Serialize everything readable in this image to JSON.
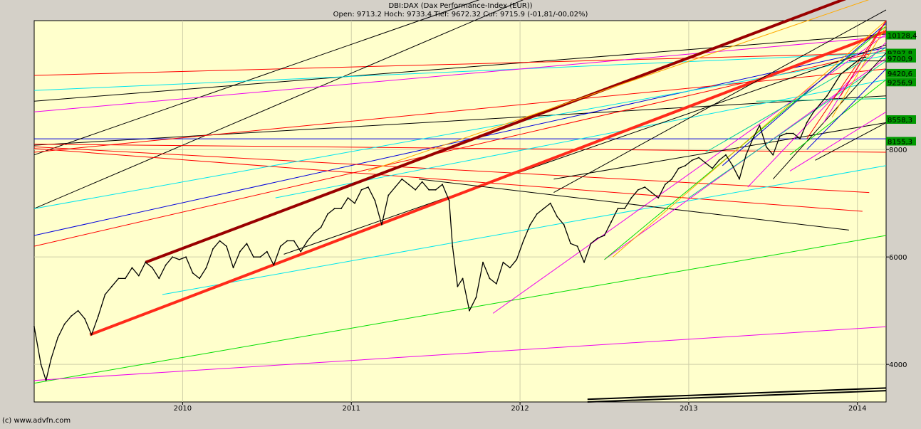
{
  "header": {
    "title": "DBI:DAX (Dax Performance-Index (EUR))",
    "quote": "Open: 9713.2 Hoch: 9733.4 Tief: 9672.32 Cur: 9715.9 (-01,81/-00,02%)"
  },
  "footer": {
    "copyright": "(c) www.advfn.com"
  },
  "colors": {
    "plot_bg": "#ffffcc",
    "frame_bg": "#d4d0c8",
    "price": "#000000",
    "label_box": "#009900",
    "red": "#ff0000",
    "thick_red": "#ff2a1a",
    "dark_red": "#990000",
    "black": "#000000",
    "blue": "#0000dd",
    "cyan": "#00e5ee",
    "magenta": "#ee00ee",
    "green": "#00dd00",
    "orange": "#ffaa00",
    "teal": "#00cc99"
  },
  "chart_data": {
    "type": "line",
    "title": "DBI:DAX (Dax Performance-Index (EUR))",
    "xlabel": "",
    "ylabel": "",
    "x_ticks": [
      "2010",
      "2011",
      "2012",
      "2013",
      "2014"
    ],
    "y_ticks": [
      4000,
      6000,
      8000
    ],
    "xlim": [
      2009.12,
      2014.17
    ],
    "ylim": [
      3300,
      10400
    ],
    "grid": true,
    "price_series": {
      "name": "",
      "x": [
        2009.12,
        2009.16,
        2009.19,
        2009.22,
        2009.26,
        2009.3,
        2009.34,
        2009.38,
        2009.42,
        2009.46,
        2009.5,
        2009.54,
        2009.58,
        2009.62,
        2009.66,
        2009.7,
        2009.74,
        2009.78,
        2009.82,
        2009.86,
        2009.9,
        2009.94,
        2009.98,
        2010.02,
        2010.06,
        2010.1,
        2010.14,
        2010.18,
        2010.22,
        2010.26,
        2010.3,
        2010.34,
        2010.38,
        2010.42,
        2010.46,
        2010.5,
        2010.54,
        2010.58,
        2010.62,
        2010.66,
        2010.7,
        2010.74,
        2010.78,
        2010.82,
        2010.86,
        2010.9,
        2010.94,
        2010.98,
        2011.02,
        2011.06,
        2011.1,
        2011.14,
        2011.18,
        2011.22,
        2011.26,
        2011.3,
        2011.34,
        2011.38,
        2011.42,
        2011.46,
        2011.5,
        2011.54,
        2011.58,
        2011.6,
        2011.63,
        2011.66,
        2011.7,
        2011.74,
        2011.78,
        2011.82,
        2011.86,
        2011.9,
        2011.94,
        2011.98,
        2012.02,
        2012.06,
        2012.1,
        2012.14,
        2012.18,
        2012.22,
        2012.26,
        2012.3,
        2012.34,
        2012.38,
        2012.42,
        2012.46,
        2012.5,
        2012.54,
        2012.58,
        2012.62,
        2012.66,
        2012.7,
        2012.74,
        2012.78,
        2012.82,
        2012.86,
        2012.9,
        2012.94,
        2012.98,
        2013.02,
        2013.06,
        2013.1,
        2013.14,
        2013.18,
        2013.22,
        2013.26,
        2013.3,
        2013.34,
        2013.38,
        2013.42,
        2013.46,
        2013.5,
        2013.54,
        2013.58,
        2013.62,
        2013.66,
        2013.7,
        2013.74,
        2013.78,
        2013.82,
        2013.86,
        2013.9,
        2013.94,
        2013.98,
        2014.02,
        2014.05
      ],
      "y": [
        4700,
        4000,
        3700,
        4100,
        4500,
        4750,
        4900,
        5000,
        4850,
        4550,
        4900,
        5300,
        5450,
        5600,
        5600,
        5800,
        5650,
        5900,
        5800,
        5600,
        5850,
        6000,
        5950,
        6000,
        5700,
        5600,
        5800,
        6150,
        6300,
        6200,
        5800,
        6100,
        6250,
        6000,
        6000,
        6100,
        5850,
        6200,
        6300,
        6300,
        6100,
        6300,
        6450,
        6550,
        6800,
        6900,
        6900,
        7100,
        7000,
        7250,
        7300,
        7050,
        6600,
        7150,
        7300,
        7450,
        7350,
        7250,
        7400,
        7250,
        7250,
        7350,
        7050,
        6200,
        5450,
        5600,
        5000,
        5250,
        5900,
        5600,
        5500,
        5900,
        5800,
        5950,
        6300,
        6600,
        6800,
        6900,
        7000,
        6750,
        6600,
        6250,
        6200,
        5900,
        6250,
        6350,
        6400,
        6650,
        6900,
        6900,
        7100,
        7250,
        7300,
        7200,
        7100,
        7350,
        7450,
        7650,
        7700,
        7800,
        7850,
        7750,
        7650,
        7800,
        7900,
        7700,
        7450,
        7900,
        8200,
        8450,
        8050,
        7900,
        8250,
        8300,
        8300,
        8200,
        8500,
        8700,
        8850,
        9000,
        9200,
        9400,
        9500,
        9600,
        9700,
        9720
      ]
    }
  }
}
